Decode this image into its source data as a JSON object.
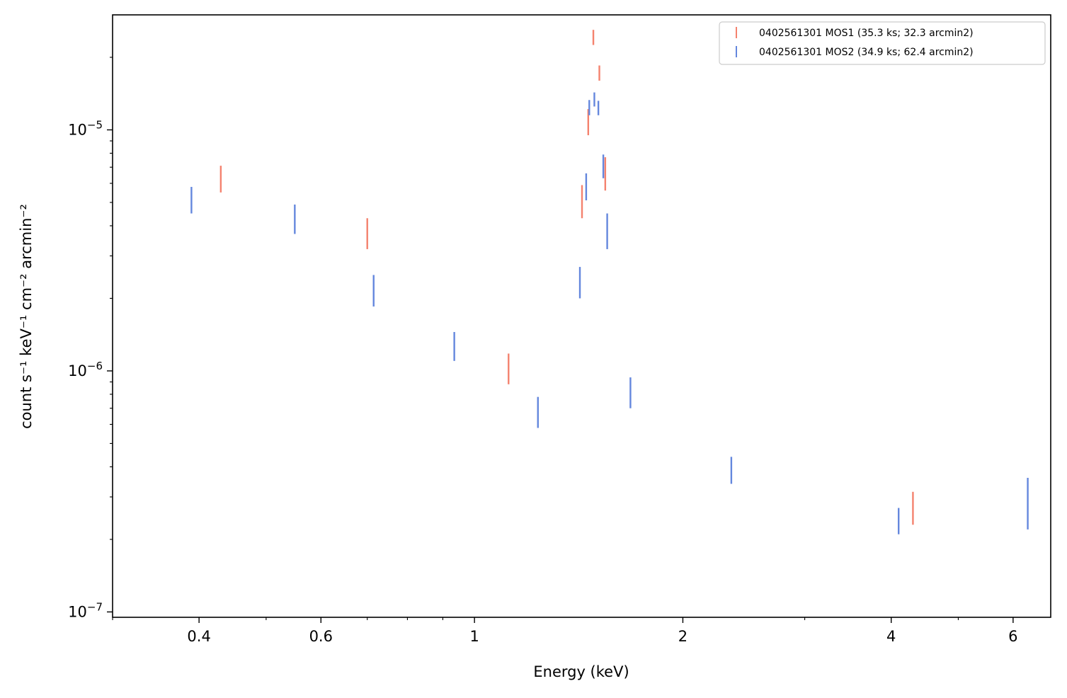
{
  "chart_data": {
    "type": "scatter",
    "xlabel": "Energy (keV)",
    "ylabel": "count s⁻¹ keV⁻¹ cm⁻² arcmin⁻²",
    "xscale": "log",
    "yscale": "log",
    "xlim": [
      0.3,
      6.8
    ],
    "ylim": [
      9.5e-08,
      3e-05
    ],
    "x_ticks": [
      {
        "value": 0.4,
        "label": "0.4"
      },
      {
        "value": 0.6,
        "label": "0.6"
      },
      {
        "value": 1,
        "label": "1"
      },
      {
        "value": 2,
        "label": "2"
      },
      {
        "value": 4,
        "label": "4"
      },
      {
        "value": 6,
        "label": "6"
      }
    ],
    "y_ticks": [
      {
        "value": 1e-07,
        "base": "10",
        "exp": "−7"
      },
      {
        "value": 1e-06,
        "base": "10",
        "exp": "−6"
      },
      {
        "value": 1e-05,
        "base": "10",
        "exp": "−5"
      }
    ],
    "legend_position": "top-right",
    "grid": false,
    "series": [
      {
        "name": "0402561301 MOS1 (35.3 ks; 32.3 arcmin2)",
        "color": "#f4826e",
        "points": [
          {
            "x": 0.43,
            "ylow": 5.5e-06,
            "yhigh": 7.1e-06
          },
          {
            "x": 0.7,
            "ylow": 3.2e-06,
            "yhigh": 4.3e-06
          },
          {
            "x": 1.12,
            "ylow": 8.8e-07,
            "yhigh": 1.18e-06
          },
          {
            "x": 1.43,
            "ylow": 4.3e-06,
            "yhigh": 5.9e-06
          },
          {
            "x": 1.46,
            "ylow": 9.5e-06,
            "yhigh": 1.22e-05
          },
          {
            "x": 1.485,
            "ylow": 2.25e-05,
            "yhigh": 2.6e-05
          },
          {
            "x": 1.515,
            "ylow": 1.6e-05,
            "yhigh": 1.85e-05
          },
          {
            "x": 1.545,
            "ylow": 5.6e-06,
            "yhigh": 7.7e-06
          },
          {
            "x": 4.3,
            "ylow": 2.3e-07,
            "yhigh": 3.15e-07
          }
        ]
      },
      {
        "name": "0402561301 MOS2 (34.9 ks; 62.4 arcmin2)",
        "color": "#6487dd",
        "points": [
          {
            "x": 0.39,
            "ylow": 4.5e-06,
            "yhigh": 5.8e-06
          },
          {
            "x": 0.55,
            "ylow": 3.7e-06,
            "yhigh": 4.9e-06
          },
          {
            "x": 0.715,
            "ylow": 1.85e-06,
            "yhigh": 2.5e-06
          },
          {
            "x": 0.935,
            "ylow": 1.1e-06,
            "yhigh": 1.45e-06
          },
          {
            "x": 1.235,
            "ylow": 5.8e-07,
            "yhigh": 7.8e-07
          },
          {
            "x": 1.42,
            "ylow": 2e-06,
            "yhigh": 2.7e-06
          },
          {
            "x": 1.45,
            "ylow": 5.1e-06,
            "yhigh": 6.6e-06
          },
          {
            "x": 1.465,
            "ylow": 1.15e-05,
            "yhigh": 1.33e-05
          },
          {
            "x": 1.49,
            "ylow": 1.25e-05,
            "yhigh": 1.43e-05
          },
          {
            "x": 1.51,
            "ylow": 1.15e-05,
            "yhigh": 1.32e-05
          },
          {
            "x": 1.535,
            "ylow": 6.3e-06,
            "yhigh": 7.9e-06
          },
          {
            "x": 1.555,
            "ylow": 3.2e-06,
            "yhigh": 4.5e-06
          },
          {
            "x": 1.68,
            "ylow": 7e-07,
            "yhigh": 9.4e-07
          },
          {
            "x": 2.35,
            "ylow": 3.4e-07,
            "yhigh": 4.4e-07
          },
          {
            "x": 4.1,
            "ylow": 2.1e-07,
            "yhigh": 2.7e-07
          },
          {
            "x": 6.3,
            "ylow": 2.2e-07,
            "yhigh": 3.6e-07
          }
        ]
      }
    ]
  }
}
